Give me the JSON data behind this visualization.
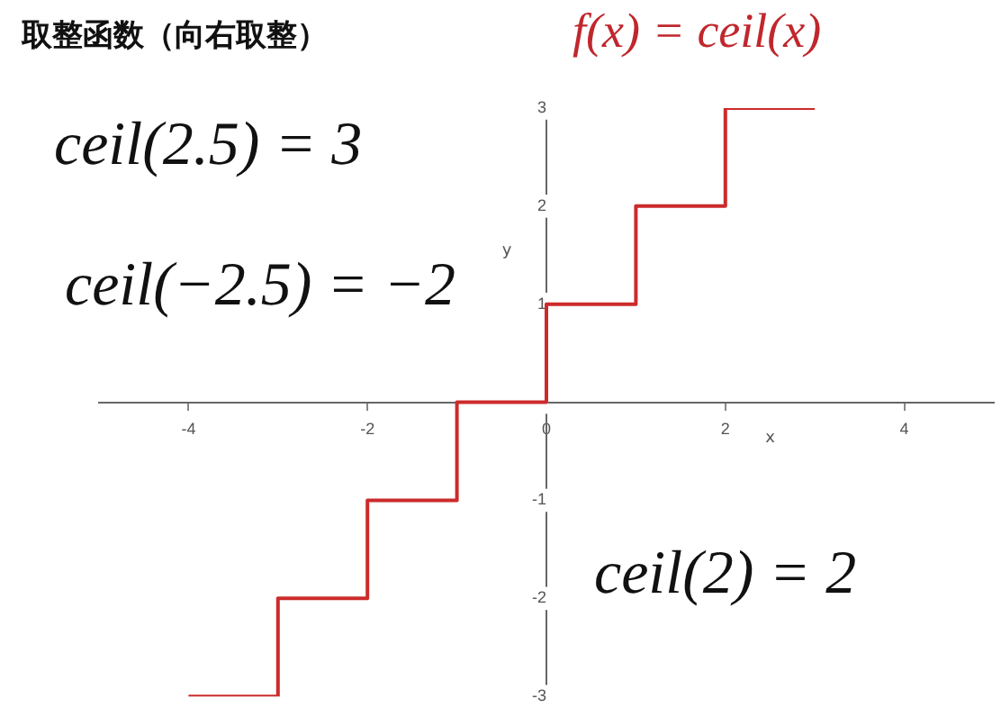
{
  "chart_data": {
    "type": "step",
    "title": "取整函数（向右取整）",
    "subtitle": "f(x) = ceil(x)",
    "xlabel": "x",
    "ylabel": "y",
    "annotations": [
      "ceil(2.5) = 3",
      "ceil(−2.5) = −2",
      "ceil(2) = 2"
    ],
    "x": [
      -4,
      -3,
      -2,
      -1,
      0,
      1,
      2,
      3
    ],
    "series": [
      {
        "color": "#cc2b2b",
        "values": [
          -3,
          -2,
          -1,
          0,
          1,
          2,
          3,
          3
        ]
      }
    ],
    "xlim": [
      -5,
      5
    ],
    "xticks": [
      -4,
      -2,
      0,
      2,
      4
    ],
    "ylim": [
      -3,
      3
    ],
    "yticks": [
      -3,
      -2,
      -1,
      {
        "value": 0,
        "label": null
      },
      1,
      2,
      3
    ],
    "grid": false,
    "legend": false,
    "marker": "none",
    "line_style": "solid"
  }
}
